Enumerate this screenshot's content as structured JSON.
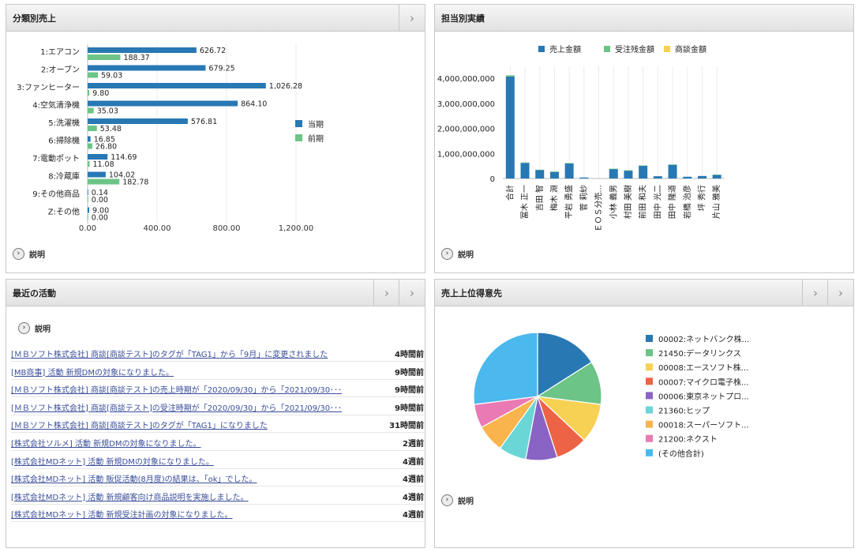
{
  "panel1": {
    "title": "分類別売上",
    "explain": "説明",
    "chart_data": {
      "type": "bar",
      "orientation": "horizontal",
      "categories": [
        "1:エアコン",
        "2:オーブン",
        "3:ファンヒーター",
        "4:空気清浄機",
        "5:洗濯機",
        "6:掃除機",
        "7:電動ポット",
        "8:冷蔵庫",
        "9:その他商品",
        "Z:その他"
      ],
      "series": [
        {
          "name": "当期",
          "color": "#2878b4",
          "values": [
            626.72,
            679.25,
            1026.28,
            864.1,
            576.81,
            16.85,
            114.69,
            104.02,
            0.14,
            9.0
          ],
          "labels": [
            "626.72",
            "679.25",
            "1,026.28",
            "864.10",
            "576.81",
            "16.85",
            "114.69",
            "104.02",
            "0.14",
            "9.00"
          ]
        },
        {
          "name": "前期",
          "color": "#6cc486",
          "values": [
            188.37,
            59.03,
            9.8,
            35.03,
            53.48,
            26.8,
            11.08,
            182.78,
            0.0,
            0.0
          ],
          "labels": [
            "188.37",
            "59.03",
            "9.80",
            "35.03",
            "53.48",
            "26.80",
            "11.08",
            "182.78",
            "0.00",
            "0.00"
          ]
        }
      ],
      "xticks": [
        "0.00",
        "400.00",
        "800.00",
        "1,200.00"
      ],
      "xtick_values": [
        0,
        400,
        800,
        1200
      ],
      "xlim": [
        0,
        1400
      ],
      "legend": "right",
      "grid": true
    }
  },
  "panel2": {
    "title": "担当別実績",
    "explain": "説明",
    "chart_data": {
      "type": "bar",
      "stacked": true,
      "categories": [
        "合計",
        "冨木 正一",
        "吉田 智",
        "梅木 淵",
        "平岩 勇盛",
        "菅 莉紗",
        "ＥＯＳ分売...",
        "小林 義男",
        "村田 美樹",
        "前田 和夫",
        "田中 光二",
        "田中 隆道",
        "岩橋 治彦",
        "坪 秀行",
        "片山 雅美"
      ],
      "series": [
        {
          "name": "売上金額",
          "color": "#2878b4",
          "values": [
            4070000000,
            620000000,
            340000000,
            270000000,
            600000000,
            40000000,
            0,
            380000000,
            320000000,
            510000000,
            90000000,
            550000000,
            70000000,
            100000000,
            150000000
          ]
        },
        {
          "name": "受注残金額",
          "color": "#6cc486",
          "values": [
            50000000,
            20000000,
            10000000,
            5000000,
            15000000,
            0,
            0,
            10000000,
            5000000,
            10000000,
            0,
            10000000,
            0,
            0,
            5000000
          ]
        },
        {
          "name": "商談金額",
          "color": "#f7d154",
          "values": [
            0,
            0,
            0,
            0,
            0,
            0,
            0,
            0,
            0,
            0,
            0,
            0,
            0,
            0,
            0
          ]
        }
      ],
      "yticks": [
        "0",
        "1,000,000,000",
        "2,000,000,000",
        "3,000,000,000",
        "4,000,000,000"
      ],
      "ytick_values": [
        0,
        1000000000,
        2000000000,
        3000000000,
        4000000000
      ],
      "ylim": [
        0,
        4100000000
      ],
      "legend": "top",
      "grid": true
    }
  },
  "panel3": {
    "title": "最近の活動",
    "explain": "説明",
    "items": [
      {
        "text": "[ＭＢソフト株式会社] 商談[商談テスト]のタグが「TAG1」から「9月」に変更されました",
        "time": "4時間前"
      },
      {
        "text": "[MB商事] 活動 新規DMの対象になりました。",
        "time": "9時間前"
      },
      {
        "text": "[ＭＢソフト株式会社] 商談[商談テスト]の売上時期が「2020/09/30」から「2021/09/30･･･",
        "time": "9時間前"
      },
      {
        "text": "[ＭＢソフト株式会社] 商談[商談テスト]の受注時期が「2020/09/30」から「2021/09/30･･･",
        "time": "9時間前"
      },
      {
        "text": "[ＭＢソフト株式会社] 商談[商談テスト]のタグが「TAG1」になりました",
        "time": "31時間前"
      },
      {
        "text": "[株式会社ソルメ] 活動 新規DMの対象になりました。",
        "time": "2週前"
      },
      {
        "text": "[株式会社MDネット] 活動 新規DMの対象になりました。",
        "time": "4週前"
      },
      {
        "text": "[株式会社MDネット] 活動 販促活動(8月度)の結果は、「ok」でした。",
        "time": "4週前"
      },
      {
        "text": "[株式会社MDネット] 活動 新規顧客向け商品説明を実施しました。",
        "time": "4週前"
      },
      {
        "text": "[株式会社MDネット] 活動 新規受注計画の対象になりました。",
        "time": "4週前"
      }
    ]
  },
  "panel4": {
    "title": "売上上位得意先",
    "explain": "説明",
    "chart_data": {
      "type": "pie",
      "legend": "right",
      "slices": [
        {
          "label": "00002:ネットバンク株...",
          "value": 16,
          "color": "#2878b4"
        },
        {
          "label": "21450:データリンクス",
          "value": 11,
          "color": "#6cc486"
        },
        {
          "label": "00008:エースソフト株...",
          "value": 10,
          "color": "#f7d154"
        },
        {
          "label": "00007:マイクロ電子株...",
          "value": 8,
          "color": "#ec6346"
        },
        {
          "label": "00006:東京ネットプロ...",
          "value": 8,
          "color": "#8a64c4"
        },
        {
          "label": "21360:ヒップ",
          "value": 7,
          "color": "#6ad6d6"
        },
        {
          "label": "00018:スーパーソフト...",
          "value": 7,
          "color": "#fab44e"
        },
        {
          "label": "21200:ネクスト",
          "value": 6,
          "color": "#e97ab4"
        },
        {
          "label": "(その他合計)",
          "value": 27,
          "color": "#4bb8ee"
        }
      ]
    }
  },
  "icons": {
    "chevron": "›"
  }
}
